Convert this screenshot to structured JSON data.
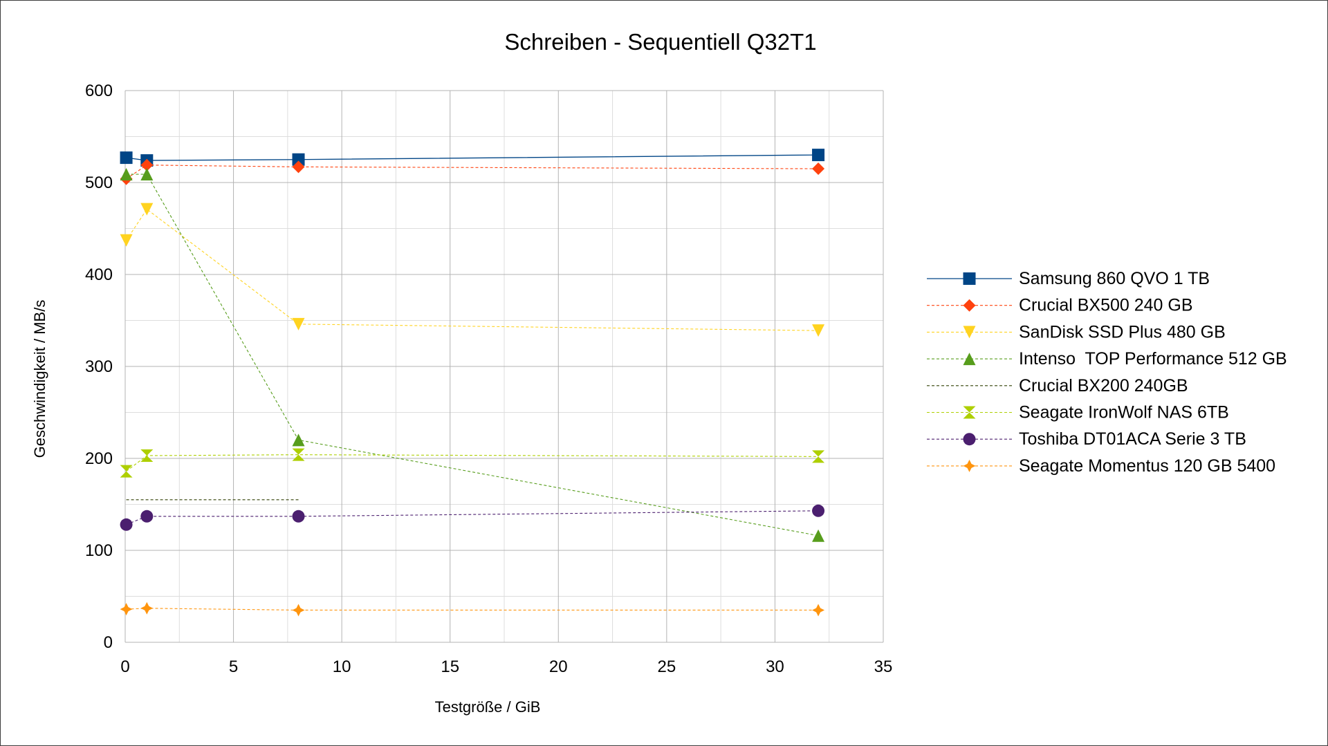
{
  "chart_data": {
    "type": "line",
    "title": "Schreiben - Sequentiell Q32T1",
    "xlabel": "Testgröße / GiB",
    "ylabel": "Geschwindigkeit / MB/s",
    "xlim": [
      0,
      35
    ],
    "ylim": [
      0,
      600
    ],
    "x_ticks": [
      0,
      5,
      10,
      15,
      20,
      25,
      30,
      35
    ],
    "y_ticks": [
      0,
      100,
      200,
      300,
      400,
      500,
      600
    ],
    "grid": true,
    "legend_position": "right",
    "series": [
      {
        "name": "Samsung 860 QVO 1 TB",
        "color": "#004586",
        "line": "solid",
        "marker": "square",
        "x": [
          0.05,
          1,
          8,
          32
        ],
        "y": [
          527,
          524,
          525,
          530
        ]
      },
      {
        "name": "Crucial BX500 240 GB",
        "color": "#ff420e",
        "line": "dashed",
        "marker": "diamond",
        "x": [
          0.05,
          1,
          8,
          32
        ],
        "y": [
          504,
          519,
          517,
          515
        ]
      },
      {
        "name": "SanDisk SSD Plus 480 GB",
        "color": "#ffd320",
        "line": "dashed",
        "marker": "triangle-down",
        "x": [
          0.05,
          1,
          8,
          32
        ],
        "y": [
          437,
          471,
          346,
          339
        ]
      },
      {
        "name": "Intenso  TOP Performance 512 GB",
        "color": "#579d1c",
        "line": "dashed",
        "marker": "triangle-up",
        "x": [
          0.05,
          1,
          8,
          32
        ],
        "y": [
          509,
          509,
          220,
          116
        ]
      },
      {
        "name": "Crucial BX200 240GB",
        "color": "#314004",
        "line": "dashed",
        "marker": "bowtie",
        "x": [
          0.05,
          1,
          8
        ],
        "y": [
          155,
          155,
          155
        ]
      },
      {
        "name": "Seagate IronWolf NAS 6TB",
        "color": "#aecf00",
        "line": "dashed",
        "marker": "hourglass",
        "x": [
          0.05,
          1,
          8,
          32
        ],
        "y": [
          186,
          203,
          204,
          202
        ]
      },
      {
        "name": "Toshiba DT01ACA Serie 3 TB",
        "color": "#4b1f6f",
        "line": "dashed",
        "marker": "circle",
        "x": [
          0.05,
          1,
          8,
          32
        ],
        "y": [
          128,
          137,
          137,
          143
        ]
      },
      {
        "name": "Seagate Momentus 120 GB 5400",
        "color": "#ff950e",
        "line": "dashed",
        "marker": "star",
        "x": [
          0.05,
          1,
          8,
          32
        ],
        "y": [
          36,
          37,
          35,
          35
        ]
      }
    ]
  }
}
